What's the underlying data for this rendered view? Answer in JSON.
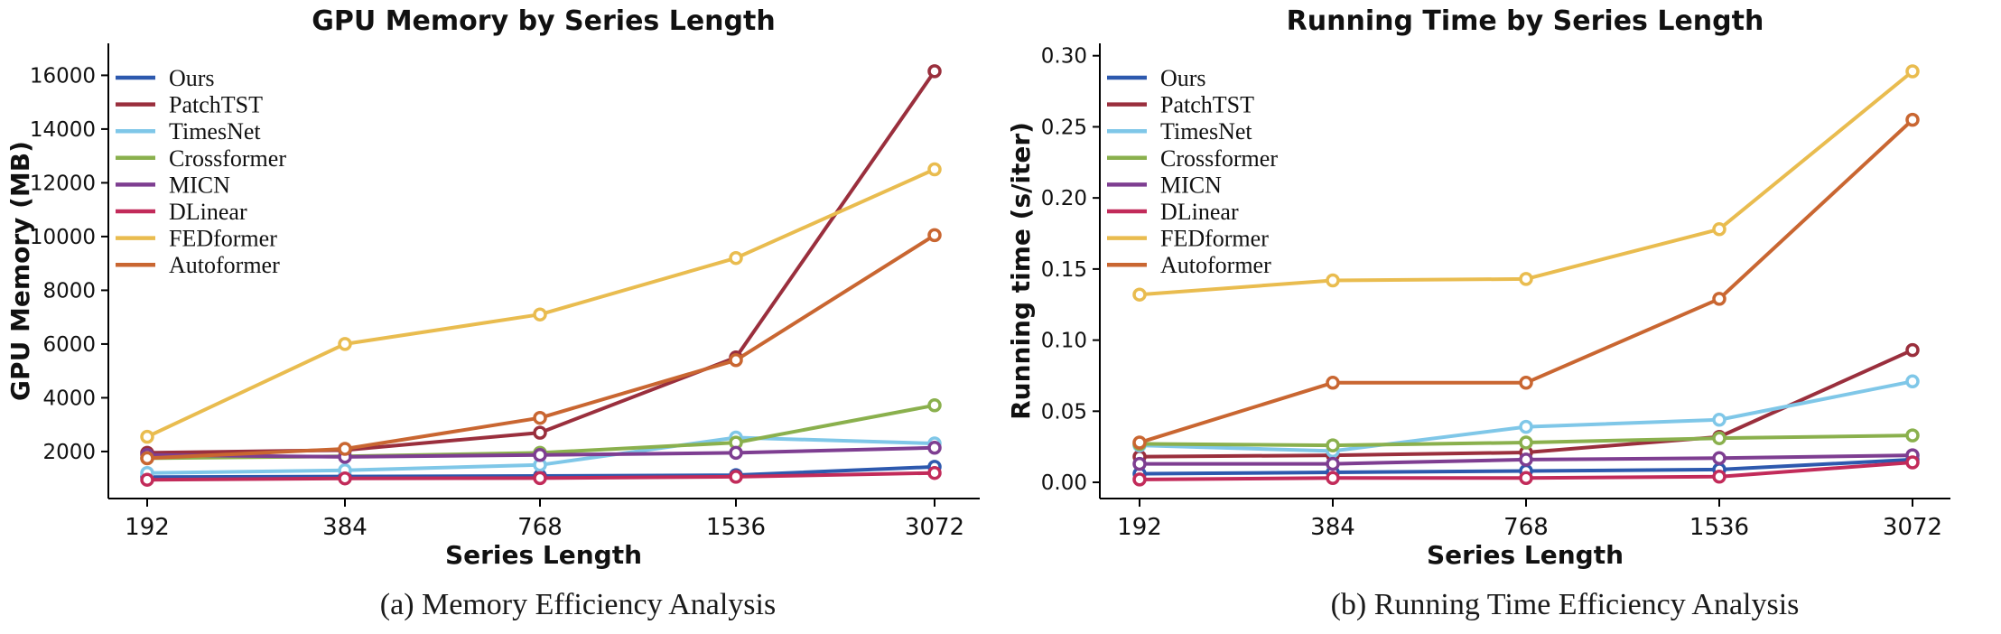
{
  "page": {
    "background": "#ffffff",
    "text_color": "#111111"
  },
  "chart_data": [
    {
      "type": "line",
      "title": "GPU Memory by Series Length",
      "xlabel": "Series Length",
      "ylabel": "GPU Memory (MB)",
      "caption": "(a) Memory Efficiency Analysis",
      "legend_position": "upper left",
      "grid": false,
      "marker": "open-circle",
      "x_categories": [
        "192",
        "384",
        "768",
        "1536",
        "3072"
      ],
      "ylim": [
        0,
        17000
      ],
      "yticks": {
        "values": [
          2000,
          4000,
          6000,
          8000,
          10000,
          12000,
          14000,
          16000
        ],
        "labels": [
          "2000",
          "4000",
          "6000",
          "8000",
          "10000",
          "12000",
          "14000",
          "16000"
        ]
      },
      "series": [
        {
          "name": "Ours",
          "color": "#2d59ae",
          "values": [
            1050,
            1070,
            1090,
            1120,
            1430
          ]
        },
        {
          "name": "PatchTST",
          "color": "#9a2f3d",
          "values": [
            1950,
            2050,
            2700,
            5500,
            16150
          ]
        },
        {
          "name": "TimesNet",
          "color": "#7fc7e8",
          "values": [
            1200,
            1300,
            1500,
            2520,
            2300
          ]
        },
        {
          "name": "Crossformer",
          "color": "#8ab04d",
          "values": [
            1750,
            1820,
            1950,
            2330,
            3720
          ]
        },
        {
          "name": "MICN",
          "color": "#7e3e91",
          "values": [
            1870,
            1800,
            1870,
            1950,
            2140
          ]
        },
        {
          "name": "DLinear",
          "color": "#c22b5a",
          "values": [
            950,
            1000,
            1010,
            1060,
            1200
          ]
        },
        {
          "name": "FEDformer",
          "color": "#e9bc4f",
          "values": [
            2550,
            6000,
            7100,
            9200,
            12500
          ]
        },
        {
          "name": "Autoformer",
          "color": "#c96631",
          "values": [
            1750,
            2100,
            3250,
            5400,
            10050
          ]
        }
      ]
    },
    {
      "type": "line",
      "title": "Running Time by Series Length",
      "xlabel": "Series Length",
      "ylabel": "Running time (s/iter)",
      "caption": "(b) Running Time Efficiency Analysis",
      "legend_position": "upper left",
      "grid": false,
      "marker": "open-circle",
      "x_categories": [
        "192",
        "384",
        "768",
        "1536",
        "3072"
      ],
      "ylim": [
        0,
        0.3
      ],
      "yticks": {
        "values": [
          0.0,
          0.05,
          0.1,
          0.15,
          0.2,
          0.25,
          0.3
        ],
        "labels": [
          "0.00",
          "0.05",
          "0.10",
          "0.15",
          "0.20",
          "0.25",
          "0.30"
        ]
      },
      "series": [
        {
          "name": "Ours",
          "color": "#2d59ae",
          "values": [
            0.006,
            0.007,
            0.008,
            0.009,
            0.016
          ]
        },
        {
          "name": "PatchTST",
          "color": "#9a2f3d",
          "values": [
            0.018,
            0.019,
            0.021,
            0.032,
            0.093
          ]
        },
        {
          "name": "TimesNet",
          "color": "#7fc7e8",
          "values": [
            0.026,
            0.022,
            0.039,
            0.044,
            0.071
          ]
        },
        {
          "name": "Crossformer",
          "color": "#8ab04d",
          "values": [
            0.027,
            0.026,
            0.028,
            0.031,
            0.033
          ]
        },
        {
          "name": "MICN",
          "color": "#7e3e91",
          "values": [
            0.013,
            0.013,
            0.016,
            0.017,
            0.019
          ]
        },
        {
          "name": "DLinear",
          "color": "#c22b5a",
          "values": [
            0.002,
            0.003,
            0.003,
            0.004,
            0.014
          ]
        },
        {
          "name": "FEDformer",
          "color": "#e9bc4f",
          "values": [
            0.132,
            0.142,
            0.143,
            0.178,
            0.289
          ]
        },
        {
          "name": "Autoformer",
          "color": "#c96631",
          "values": [
            0.028,
            0.07,
            0.07,
            0.129,
            0.255
          ]
        }
      ]
    }
  ]
}
